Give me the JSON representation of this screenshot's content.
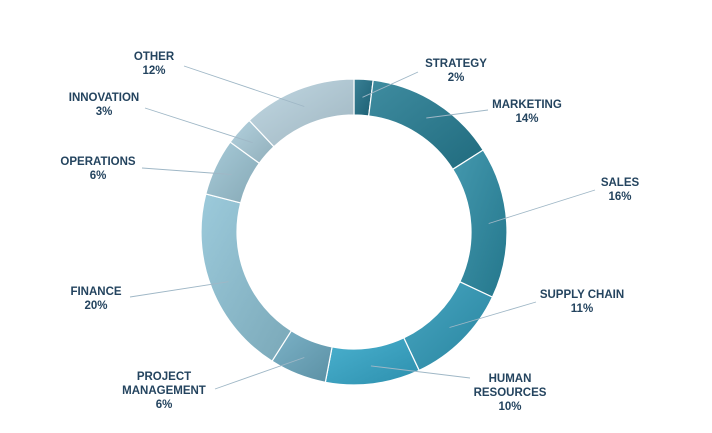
{
  "chart_data": {
    "type": "pie",
    "variant": "donut",
    "title": "",
    "slices": [
      {
        "label": "STRATEGY",
        "percent_label": "2%",
        "value": 2,
        "color": "#1f6f86"
      },
      {
        "label": "MARKETING",
        "percent_label": "14%",
        "value": 14,
        "color": "#257c93"
      },
      {
        "label": "SALES",
        "percent_label": "16%",
        "value": 16,
        "color": "#2a8aa3"
      },
      {
        "label": "SUPPLY CHAIN",
        "percent_label": "11%",
        "value": 11,
        "color": "#2f9ab9"
      },
      {
        "label": "HUMAN RESOURCES",
        "percent_label": "10%",
        "value": 10,
        "color": "#33a6c9"
      },
      {
        "label": "PROJECT MANAGEMENT",
        "percent_label": "6%",
        "value": 6,
        "color": "#6aa8bf"
      },
      {
        "label": "FINANCE",
        "percent_label": "20%",
        "value": 20,
        "color": "#8ec3d6"
      },
      {
        "label": "OPERATIONS",
        "percent_label": "6%",
        "value": 6,
        "color": "#9cc4d4"
      },
      {
        "label": "INNOVATION",
        "percent_label": "3%",
        "value": 3,
        "color": "#a9cbd9"
      },
      {
        "label": "OTHER",
        "percent_label": "12%",
        "value": 12,
        "color": "#b9d3df"
      }
    ],
    "label_color": "#24445f",
    "leader_color": "#9fb7c6"
  }
}
